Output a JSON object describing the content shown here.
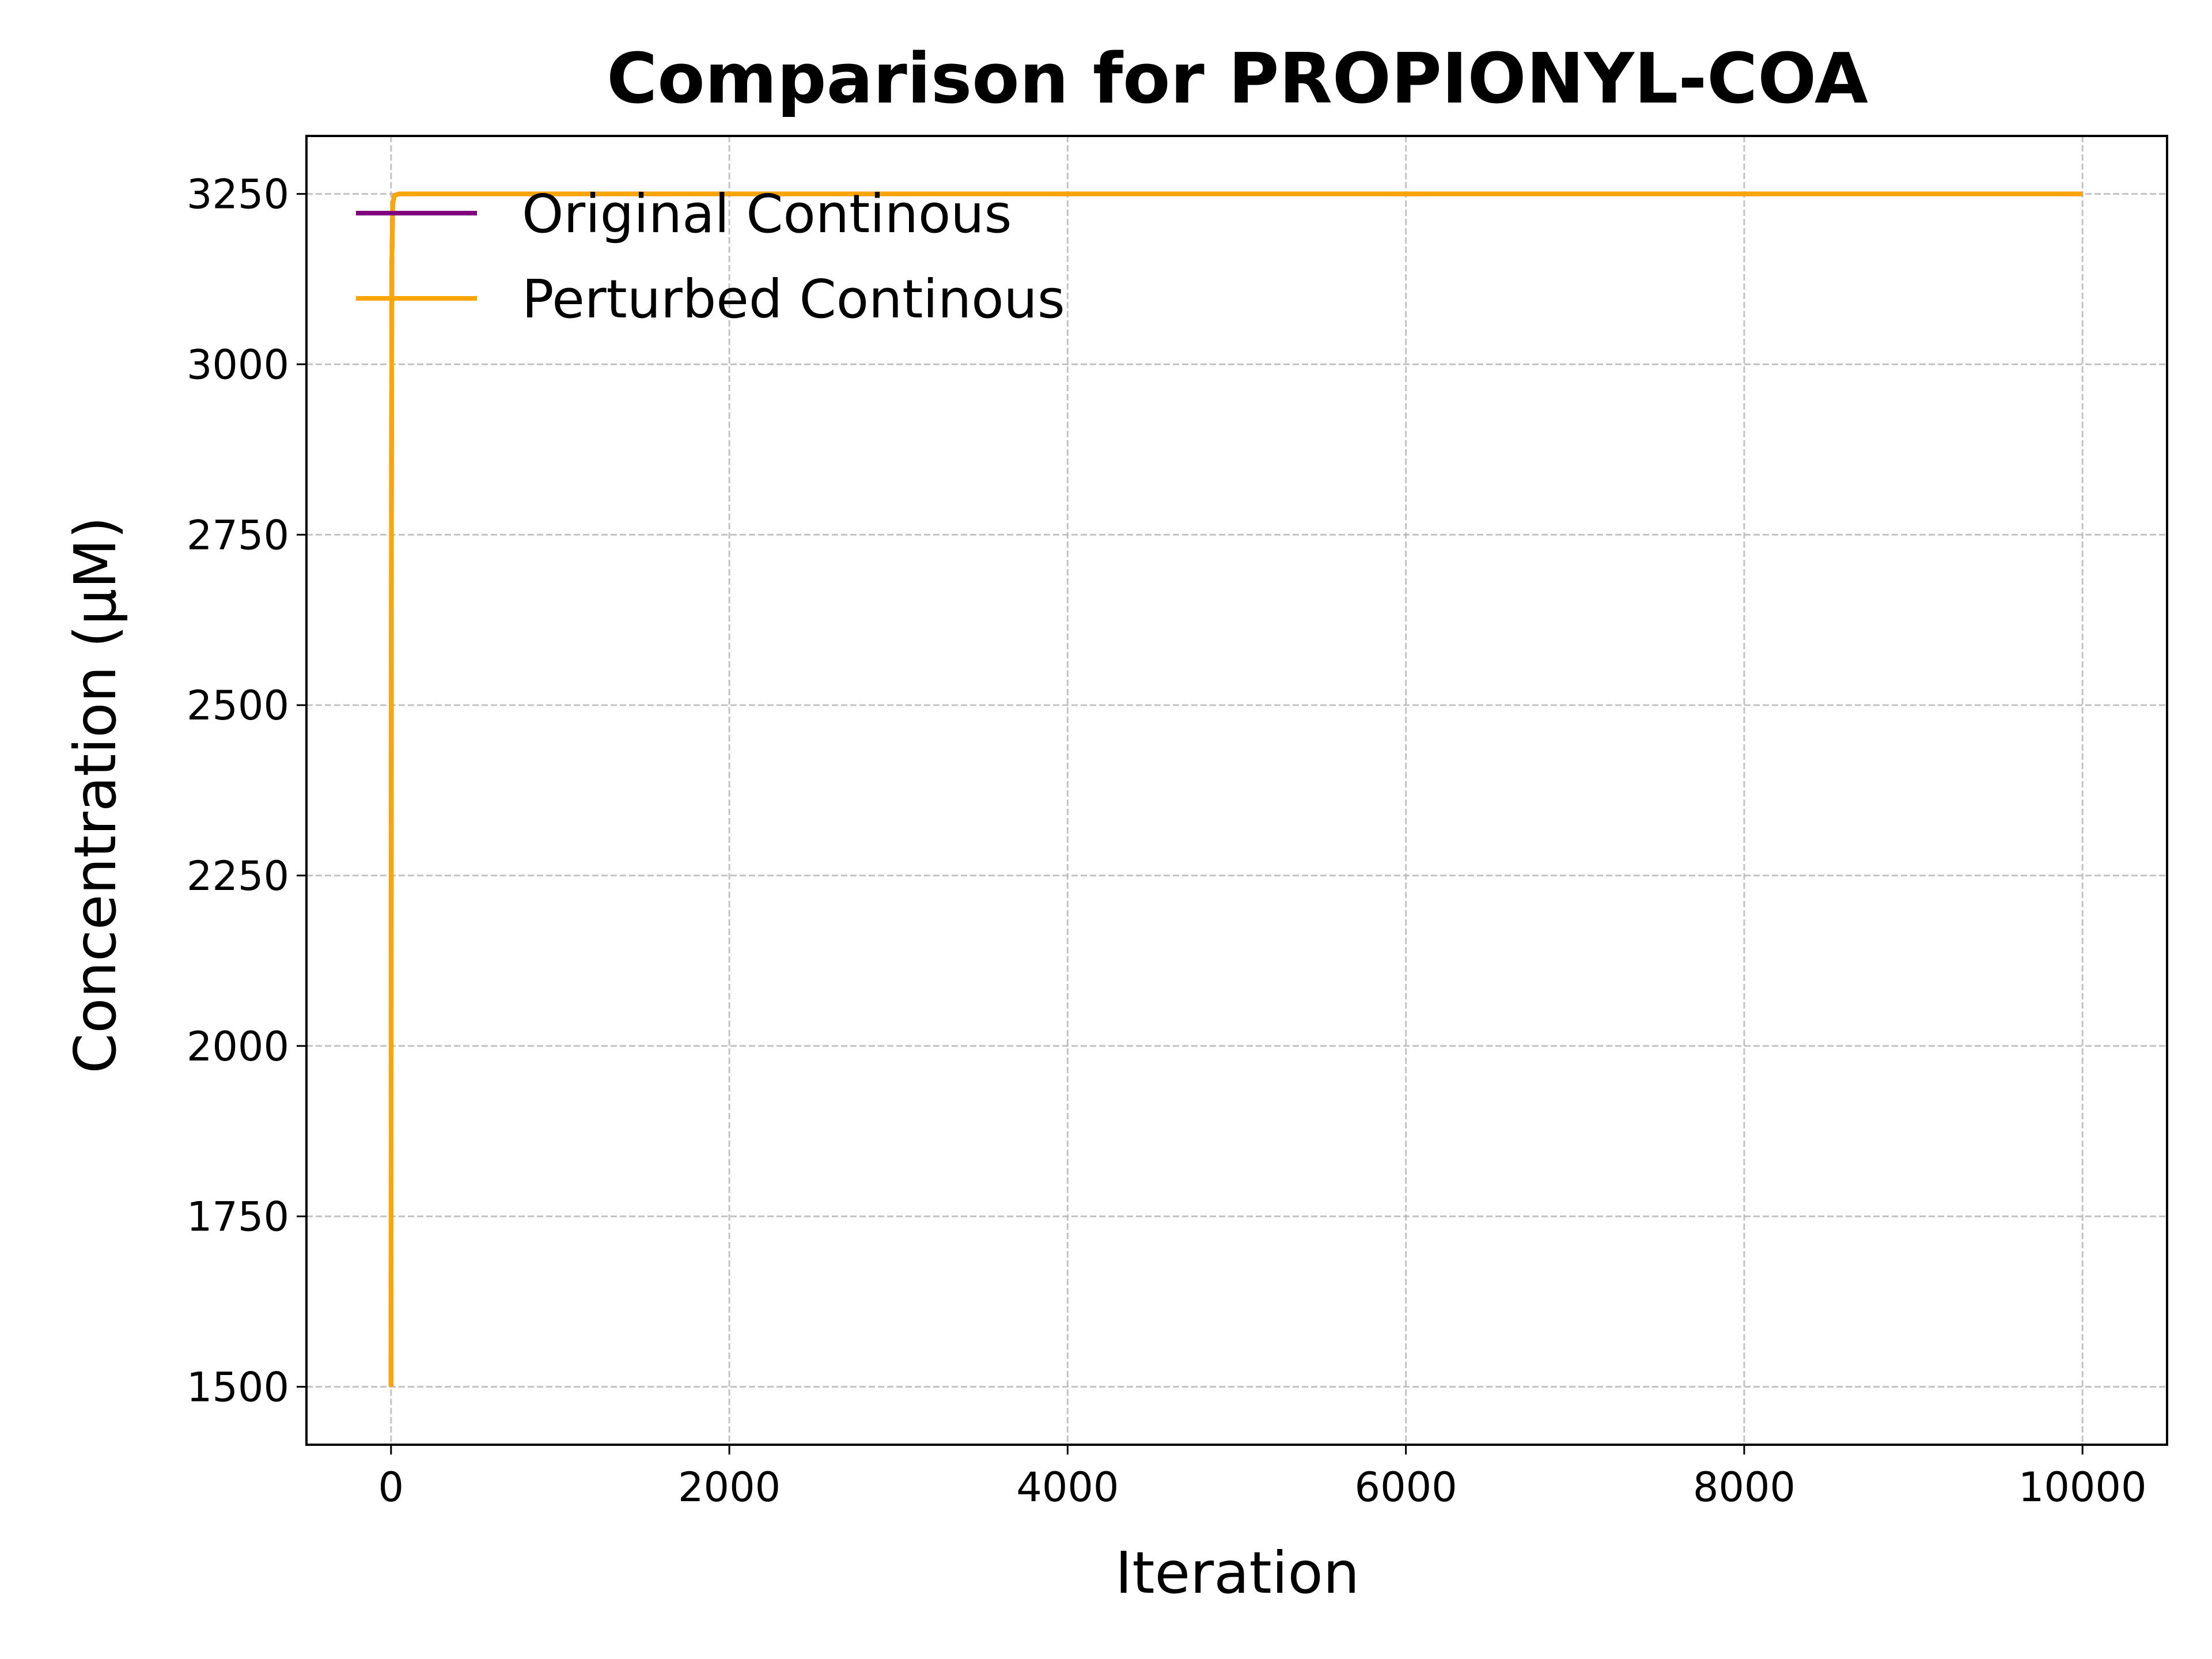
{
  "chart_data": {
    "type": "line",
    "title": "Comparison for PROPIONYL-COA",
    "xlabel": "Iteration",
    "ylabel": "Concentration (μM)",
    "xlim": [
      -500,
      10500
    ],
    "ylim": [
      1415,
      3335
    ],
    "x_ticks": [
      0,
      2000,
      4000,
      6000,
      8000,
      10000
    ],
    "y_ticks": [
      1500,
      1750,
      2000,
      2250,
      2500,
      2750,
      3000,
      3250
    ],
    "grid": true,
    "legend_position": "top-left",
    "series": [
      {
        "name": "Original Continous",
        "color": "#800080",
        "x": [
          0,
          2,
          5,
          10,
          20,
          50,
          100,
          500,
          1000,
          2000,
          4000,
          6000,
          8000,
          10000
        ],
        "y": [
          1500,
          2700,
          3150,
          3235,
          3248,
          3250,
          3250,
          3250,
          3250,
          3250,
          3250,
          3250,
          3250,
          3250
        ]
      },
      {
        "name": "Perturbed Continous",
        "color": "#FFA500",
        "x": [
          0,
          2,
          5,
          10,
          20,
          50,
          100,
          500,
          1000,
          2000,
          4000,
          6000,
          8000,
          10000
        ],
        "y": [
          1500,
          2700,
          3150,
          3235,
          3248,
          3250,
          3250,
          3250,
          3250,
          3250,
          3250,
          3250,
          3250,
          3250
        ]
      }
    ]
  }
}
